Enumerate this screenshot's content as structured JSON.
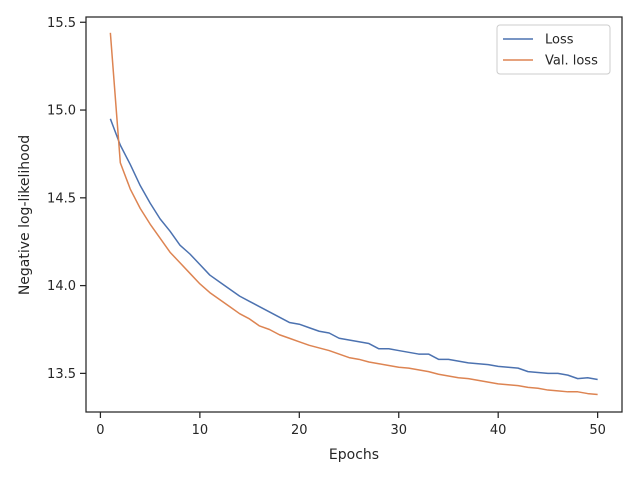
{
  "chart_data": {
    "type": "line",
    "xlabel": "Epochs",
    "ylabel": "Negative log-likelihood",
    "xlim": [
      -1.45,
      52.45
    ],
    "ylim": [
      13.28,
      15.53
    ],
    "xticks": [
      0,
      10,
      20,
      30,
      40,
      50
    ],
    "xtick_labels": [
      "0",
      "10",
      "20",
      "30",
      "40",
      "50"
    ],
    "yticks": [
      13.5,
      14.0,
      14.5,
      15.0,
      15.5
    ],
    "ytick_labels": [
      "13.5",
      "14.0",
      "14.5",
      "15.0",
      "15.5"
    ],
    "legend_position": "top-right",
    "grid": false,
    "x": [
      1,
      2,
      3,
      4,
      5,
      6,
      7,
      8,
      9,
      10,
      11,
      12,
      13,
      14,
      15,
      16,
      17,
      18,
      19,
      20,
      21,
      22,
      23,
      24,
      25,
      26,
      27,
      28,
      29,
      30,
      31,
      32,
      33,
      34,
      35,
      36,
      37,
      38,
      39,
      40,
      41,
      42,
      43,
      44,
      45,
      46,
      47,
      48,
      49,
      50
    ],
    "series": [
      {
        "name": "Loss",
        "color": "#4c72b0",
        "values": [
          14.95,
          14.8,
          14.69,
          14.57,
          14.47,
          14.38,
          14.31,
          14.23,
          14.18,
          14.12,
          14.06,
          14.02,
          13.98,
          13.94,
          13.91,
          13.88,
          13.85,
          13.82,
          13.79,
          13.78,
          13.76,
          13.74,
          13.73,
          13.7,
          13.69,
          13.68,
          13.67,
          13.64,
          13.64,
          13.63,
          13.62,
          13.61,
          13.61,
          13.58,
          13.58,
          13.57,
          13.56,
          13.555,
          13.55,
          13.54,
          13.535,
          13.53,
          13.51,
          13.505,
          13.5,
          13.5,
          13.49,
          13.47,
          13.475,
          13.465
        ]
      },
      {
        "name": "Val. loss",
        "color": "#dd8452",
        "values": [
          15.44,
          14.7,
          14.55,
          14.44,
          14.35,
          14.27,
          14.19,
          14.13,
          14.07,
          14.01,
          13.96,
          13.92,
          13.88,
          13.84,
          13.81,
          13.77,
          13.75,
          13.72,
          13.7,
          13.68,
          13.66,
          13.645,
          13.63,
          13.61,
          13.59,
          13.58,
          13.565,
          13.555,
          13.545,
          13.535,
          13.53,
          13.52,
          13.51,
          13.495,
          13.485,
          13.475,
          13.47,
          13.46,
          13.45,
          13.44,
          13.435,
          13.43,
          13.42,
          13.415,
          13.405,
          13.4,
          13.395,
          13.395,
          13.385,
          13.38
        ]
      }
    ]
  }
}
